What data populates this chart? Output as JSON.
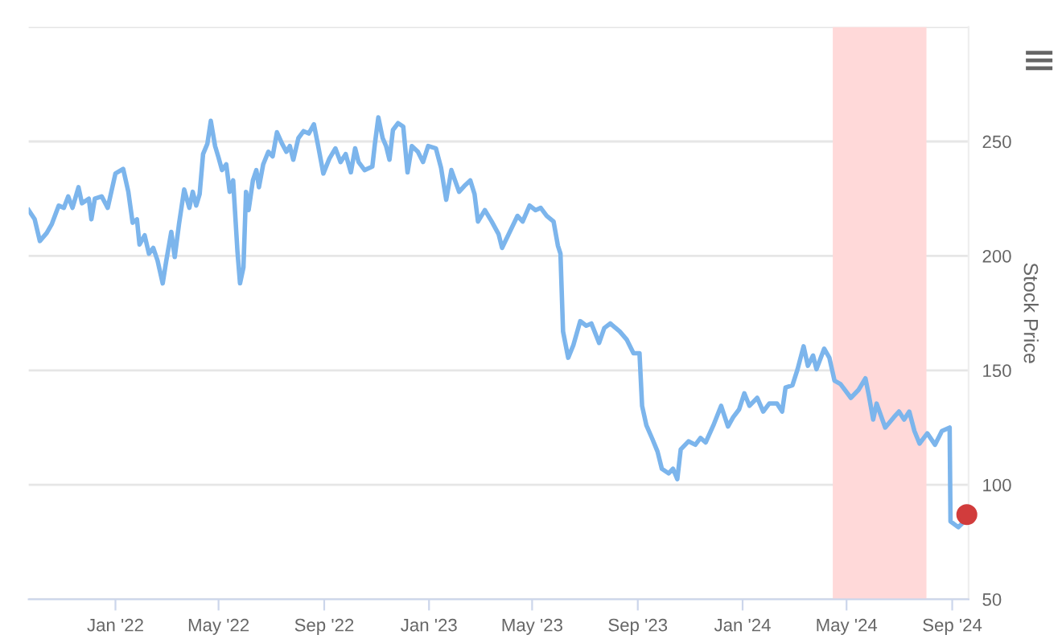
{
  "chart_data": {
    "type": "line",
    "ylabel": "Stock Price",
    "series": [
      {
        "color": "#7cb5ec",
        "marker": "none",
        "line_style": "solid",
        "x": [
          "2021-09-22",
          "2021-09-29",
          "2021-10-05",
          "2021-10-13",
          "2021-10-19",
          "2021-10-27",
          "2021-11-02",
          "2021-11-07",
          "2021-11-12",
          "2021-11-19",
          "2021-11-23",
          "2021-12-01",
          "2021-12-04",
          "2021-12-08",
          "2021-12-16",
          "2021-12-23",
          "2022-01-01",
          "2022-01-10",
          "2022-01-16",
          "2022-01-21",
          "2022-01-26",
          "2022-01-29",
          "2022-02-04",
          "2022-02-09",
          "2022-02-14",
          "2022-02-19",
          "2022-02-25",
          "2022-03-01",
          "2022-03-07",
          "2022-03-11",
          "2022-03-16",
          "2022-03-22",
          "2022-03-28",
          "2022-04-01",
          "2022-04-05",
          "2022-04-09",
          "2022-04-13",
          "2022-04-18",
          "2022-04-22",
          "2022-04-27",
          "2022-05-01",
          "2022-05-05",
          "2022-05-10",
          "2022-05-14",
          "2022-05-18",
          "2022-05-23",
          "2022-05-26",
          "2022-05-30",
          "2022-06-02",
          "2022-06-05",
          "2022-06-10",
          "2022-06-14",
          "2022-06-17",
          "2022-06-22",
          "2022-06-28",
          "2022-07-03",
          "2022-07-08",
          "2022-07-14",
          "2022-07-19",
          "2022-07-23",
          "2022-07-27",
          "2022-08-02",
          "2022-08-08",
          "2022-08-14",
          "2022-08-20",
          "2022-08-25",
          "2022-08-31",
          "2022-09-07",
          "2022-09-14",
          "2022-09-20",
          "2022-09-26",
          "2022-10-02",
          "2022-10-07",
          "2022-10-11",
          "2022-10-18",
          "2022-10-27",
          "2022-10-30",
          "2022-11-03",
          "2022-11-08",
          "2022-11-12",
          "2022-11-16",
          "2022-11-20",
          "2022-11-26",
          "2022-12-02",
          "2022-12-07",
          "2022-12-12",
          "2022-12-19",
          "2022-12-25",
          "2022-12-31",
          "2023-01-09",
          "2023-01-15",
          "2023-01-21",
          "2023-01-27",
          "2023-02-05",
          "2023-02-11",
          "2023-02-18",
          "2023-02-23",
          "2023-02-27",
          "2023-03-07",
          "2023-03-15",
          "2023-03-23",
          "2023-03-27",
          "2023-04-05",
          "2023-04-14",
          "2023-04-20",
          "2023-04-28",
          "2023-05-05",
          "2023-05-11",
          "2023-05-18",
          "2023-05-26",
          "2023-05-31",
          "2023-06-03",
          "2023-06-06",
          "2023-06-12",
          "2023-06-18",
          "2023-06-26",
          "2023-07-03",
          "2023-07-09",
          "2023-07-18",
          "2023-07-24",
          "2023-07-31",
          "2023-08-11",
          "2023-08-19",
          "2023-08-27",
          "2023-09-03",
          "2023-09-06",
          "2023-09-11",
          "2023-09-18",
          "2023-09-24",
          "2023-09-29",
          "2023-10-07",
          "2023-10-12",
          "2023-10-17",
          "2023-10-21",
          "2023-10-30",
          "2023-11-07",
          "2023-11-13",
          "2023-11-19",
          "2023-11-28",
          "2023-12-07",
          "2023-12-15",
          "2023-12-21",
          "2023-12-28",
          "2024-01-03",
          "2024-01-09",
          "2024-01-18",
          "2024-01-25",
          "2024-02-01",
          "2024-02-10",
          "2024-02-16",
          "2024-02-20",
          "2024-02-28",
          "2024-03-05",
          "2024-03-12",
          "2024-03-17",
          "2024-03-23",
          "2024-03-27",
          "2024-04-05",
          "2024-04-11",
          "2024-04-17",
          "2024-04-24",
          "2024-05-06",
          "2024-05-15",
          "2024-05-23",
          "2024-05-27",
          "2024-06-01",
          "2024-06-05",
          "2024-06-15",
          "2024-06-25",
          "2024-07-01",
          "2024-07-07",
          "2024-07-13",
          "2024-07-19",
          "2024-07-25",
          "2024-08-03",
          "2024-08-12",
          "2024-08-20",
          "2024-08-29",
          "2024-08-30",
          "2024-09-08",
          "2024-09-15"
        ],
        "values": [
          220,
          216,
          206.5,
          210,
          214,
          222,
          221,
          226,
          221,
          230,
          223,
          225,
          216,
          225,
          226,
          221,
          236,
          238,
          228,
          214.5,
          216,
          205,
          209,
          201,
          203.5,
          198,
          188,
          197.5,
          210.5,
          199.5,
          214,
          229,
          221,
          228,
          222,
          227,
          244.5,
          249,
          259,
          248,
          243,
          237.5,
          240,
          228,
          233,
          202,
          188,
          195,
          228,
          220,
          233,
          237.5,
          230,
          240,
          245.5,
          243.5,
          254,
          249,
          245.5,
          248,
          242,
          251.5,
          254.5,
          253.5,
          257.5,
          248,
          236,
          242.5,
          247,
          241,
          244.5,
          236.5,
          247,
          241,
          237.5,
          239,
          249,
          260.5,
          251.5,
          248,
          242,
          255,
          258,
          256.5,
          236.5,
          248,
          245.5,
          241,
          248,
          247,
          238.5,
          224.5,
          237.5,
          228,
          230.5,
          233,
          227,
          215,
          220,
          215,
          209.5,
          203.5,
          210.5,
          217.5,
          215,
          222,
          220,
          221,
          217.5,
          215,
          204.5,
          201,
          167,
          155.5,
          161,
          171.5,
          169.5,
          170.5,
          162,
          168.5,
          170.5,
          167,
          163.5,
          157.5,
          157.5,
          134.5,
          126,
          120,
          114.5,
          107,
          105,
          107,
          102.5,
          115.5,
          119,
          117.5,
          120.5,
          118.5,
          126,
          134.5,
          125.5,
          129.5,
          133,
          140,
          134.5,
          138,
          132,
          135.5,
          135.5,
          132,
          142.5,
          143.5,
          150.5,
          160.5,
          152,
          156.5,
          150.5,
          159.5,
          155.5,
          145.5,
          144,
          138,
          141.5,
          146.5,
          139,
          128.5,
          135.5,
          125,
          129.5,
          132,
          128.5,
          132,
          123.5,
          118,
          122.5,
          117.5,
          123.5,
          125,
          84,
          81.5,
          84
        ]
      },
      {
        "type": "scatter",
        "color": "#d13c3c",
        "marker": "circle",
        "x": [
          "2024-09-18"
        ],
        "values": [
          87
        ]
      }
    ],
    "xlim": [
      "2021-09-22",
      "2024-09-20"
    ],
    "xticks": [
      {
        "value": "2022-01-01",
        "label": "Jan '22"
      },
      {
        "value": "2022-05-01",
        "label": "May '22"
      },
      {
        "value": "2022-09-01",
        "label": "Sep '22"
      },
      {
        "value": "2023-01-01",
        "label": "Jan '23"
      },
      {
        "value": "2023-05-01",
        "label": "May '23"
      },
      {
        "value": "2023-09-01",
        "label": "Sep '23"
      },
      {
        "value": "2024-01-01",
        "label": "Jan '24"
      },
      {
        "value": "2024-05-01",
        "label": "May '24"
      },
      {
        "value": "2024-09-01",
        "label": "Sep '24"
      }
    ],
    "ylim": [
      50,
      300
    ],
    "yticks": [
      50,
      100,
      150,
      200,
      250,
      {
        "value": 300,
        "label": null
      }
    ],
    "grid": "y",
    "bands": [
      {
        "axis": "x",
        "from": "2024-04-15",
        "to": "2024-08-02",
        "color": "#ffd9d9"
      }
    ]
  }
}
